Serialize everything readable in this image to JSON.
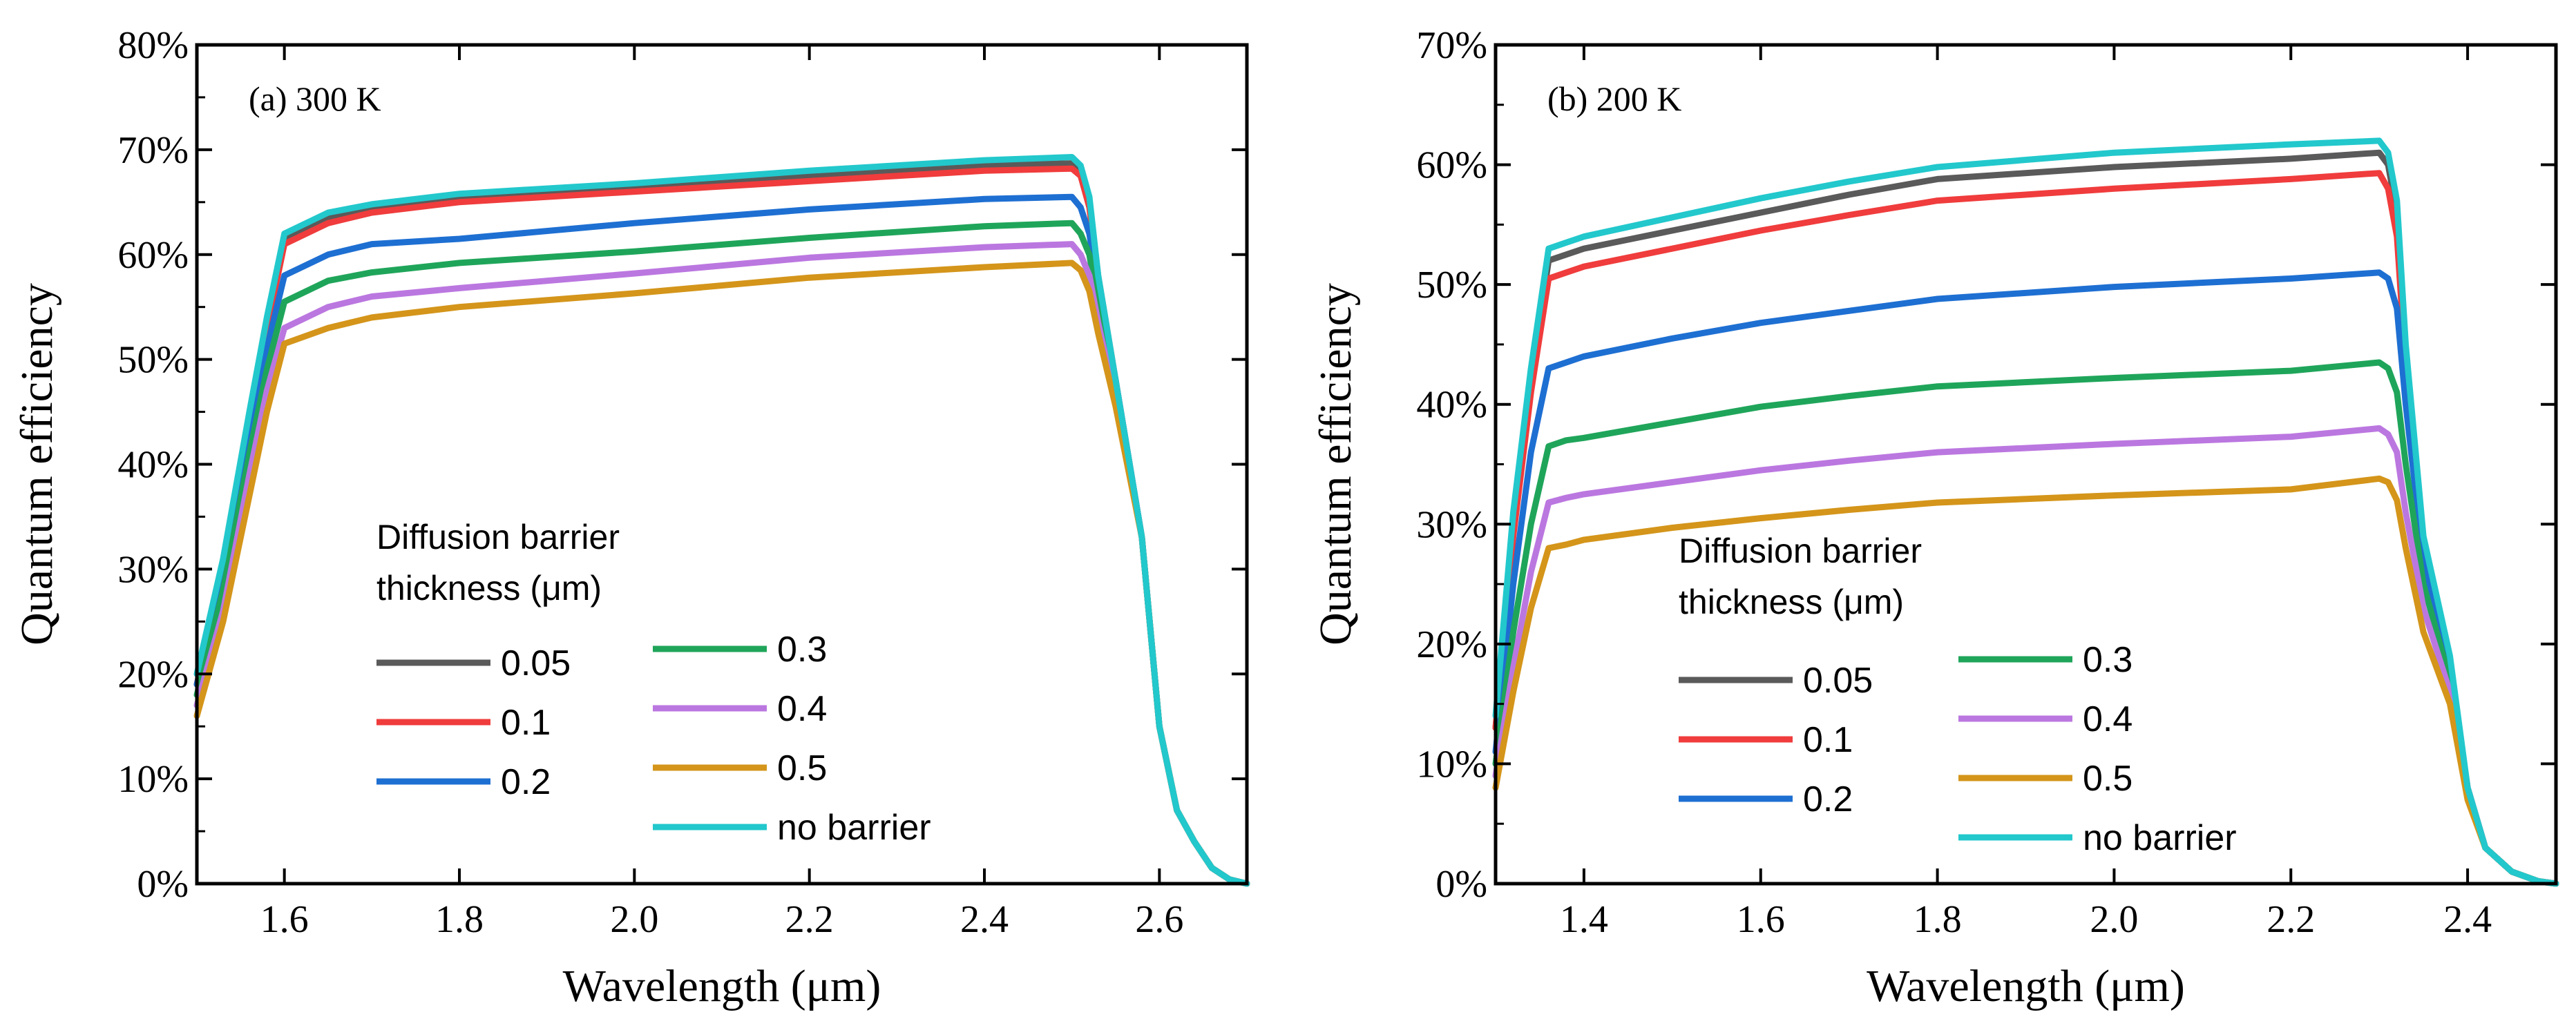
{
  "chart_data": [
    {
      "type": "line",
      "title": "(a) 300 K",
      "xlabel": "Wavelength (μm)",
      "ylabel": "Quantum efficiency",
      "xlim": [
        1.5,
        2.7
      ],
      "ylim": [
        0,
        0.8
      ],
      "xticks": [
        1.6,
        1.8,
        2.0,
        2.2,
        2.4,
        2.6
      ],
      "xtick_labels": [
        "1.6",
        "1.8",
        "2.0",
        "2.2",
        "2.4",
        "2.6"
      ],
      "yticks": [
        0,
        0.1,
        0.2,
        0.3,
        0.4,
        0.5,
        0.6,
        0.7,
        0.8
      ],
      "ytick_labels": [
        "0%",
        "10%",
        "20%",
        "30%",
        "40%",
        "50%",
        "60%",
        "70%",
        "80%"
      ],
      "legend_title": [
        "Diffusion barrier",
        "thickness (μm)"
      ],
      "grid": false,
      "series": [
        {
          "name": "0.05",
          "color": "#5a5a5a",
          "x": [
            1.5,
            1.53,
            1.56,
            1.58,
            1.6,
            1.65,
            1.7,
            1.8,
            2.0,
            2.2,
            2.4,
            2.5,
            2.51,
            2.52,
            2.53,
            2.55,
            2.58,
            2.6,
            2.62,
            2.64,
            2.66,
            2.68,
            2.7
          ],
          "y": [
            0.19,
            0.3,
            0.44,
            0.53,
            0.615,
            0.635,
            0.645,
            0.655,
            0.665,
            0.675,
            0.685,
            0.687,
            0.68,
            0.65,
            0.58,
            0.48,
            0.33,
            0.15,
            0.07,
            0.04,
            0.015,
            0.004,
            0.0
          ]
        },
        {
          "name": "0.1",
          "color": "#f03c3c",
          "x": [
            1.5,
            1.53,
            1.56,
            1.58,
            1.6,
            1.65,
            1.7,
            1.8,
            2.0,
            2.2,
            2.4,
            2.5,
            2.51,
            2.52,
            2.53,
            2.55,
            2.58,
            2.6,
            2.62,
            2.64,
            2.66,
            2.68,
            2.7
          ],
          "y": [
            0.19,
            0.3,
            0.44,
            0.53,
            0.61,
            0.63,
            0.64,
            0.65,
            0.66,
            0.67,
            0.68,
            0.682,
            0.675,
            0.645,
            0.575,
            0.48,
            0.33,
            0.15,
            0.07,
            0.04,
            0.015,
            0.004,
            0.0
          ]
        },
        {
          "name": "0.2",
          "color": "#1e6fd2",
          "x": [
            1.5,
            1.53,
            1.56,
            1.58,
            1.6,
            1.65,
            1.7,
            1.8,
            2.0,
            2.2,
            2.4,
            2.5,
            2.51,
            2.52,
            2.53,
            2.55,
            2.58,
            2.6,
            2.62,
            2.64,
            2.66,
            2.68,
            2.7
          ],
          "y": [
            0.19,
            0.29,
            0.43,
            0.51,
            0.58,
            0.6,
            0.61,
            0.615,
            0.63,
            0.643,
            0.653,
            0.655,
            0.645,
            0.62,
            0.565,
            0.48,
            0.33,
            0.15,
            0.07,
            0.04,
            0.015,
            0.004,
            0.0
          ]
        },
        {
          "name": "0.3",
          "color": "#1fa55a",
          "x": [
            1.5,
            1.53,
            1.56,
            1.58,
            1.6,
            1.65,
            1.7,
            1.8,
            2.0,
            2.2,
            2.4,
            2.5,
            2.51,
            2.52,
            2.53,
            2.55,
            2.58,
            2.6,
            2.62,
            2.64,
            2.66,
            2.68,
            2.7
          ],
          "y": [
            0.18,
            0.28,
            0.41,
            0.49,
            0.555,
            0.575,
            0.583,
            0.592,
            0.603,
            0.616,
            0.627,
            0.63,
            0.62,
            0.6,
            0.55,
            0.47,
            0.33,
            0.15,
            0.07,
            0.04,
            0.015,
            0.004,
            0.0
          ]
        },
        {
          "name": "0.4",
          "color": "#bb77e0",
          "x": [
            1.5,
            1.53,
            1.56,
            1.58,
            1.6,
            1.65,
            1.7,
            1.8,
            2.0,
            2.2,
            2.4,
            2.5,
            2.51,
            2.52,
            2.53,
            2.55,
            2.58,
            2.6,
            2.62,
            2.64,
            2.66,
            2.68,
            2.7
          ],
          "y": [
            0.17,
            0.26,
            0.39,
            0.47,
            0.53,
            0.55,
            0.56,
            0.568,
            0.582,
            0.597,
            0.607,
            0.61,
            0.6,
            0.58,
            0.535,
            0.46,
            0.33,
            0.15,
            0.07,
            0.04,
            0.015,
            0.004,
            0.0
          ]
        },
        {
          "name": "0.5",
          "color": "#d4951a",
          "x": [
            1.5,
            1.53,
            1.56,
            1.58,
            1.6,
            1.65,
            1.7,
            1.8,
            2.0,
            2.2,
            2.4,
            2.5,
            2.51,
            2.52,
            2.53,
            2.55,
            2.58,
            2.6,
            2.62,
            2.64,
            2.66,
            2.68,
            2.7
          ],
          "y": [
            0.16,
            0.25,
            0.37,
            0.45,
            0.515,
            0.53,
            0.54,
            0.55,
            0.563,
            0.578,
            0.588,
            0.592,
            0.585,
            0.565,
            0.525,
            0.455,
            0.33,
            0.15,
            0.07,
            0.04,
            0.015,
            0.004,
            0.0
          ]
        },
        {
          "name": "no barrier",
          "color": "#22c8cc",
          "x": [
            1.5,
            1.53,
            1.56,
            1.58,
            1.6,
            1.65,
            1.7,
            1.8,
            2.0,
            2.2,
            2.4,
            2.5,
            2.51,
            2.52,
            2.53,
            2.55,
            2.58,
            2.6,
            2.62,
            2.64,
            2.66,
            2.68,
            2.7
          ],
          "y": [
            0.2,
            0.31,
            0.45,
            0.54,
            0.62,
            0.64,
            0.648,
            0.658,
            0.668,
            0.68,
            0.69,
            0.693,
            0.685,
            0.655,
            0.58,
            0.48,
            0.33,
            0.15,
            0.07,
            0.04,
            0.015,
            0.004,
            0.0
          ]
        }
      ]
    },
    {
      "type": "line",
      "title": "(b) 200 K",
      "xlabel": "Wavelength (μm)",
      "ylabel": "Quantum efficiency",
      "xlim": [
        1.3,
        2.5
      ],
      "ylim": [
        0,
        0.7
      ],
      "xticks": [
        1.4,
        1.6,
        1.8,
        2.0,
        2.2,
        2.4
      ],
      "xtick_labels": [
        "1.4",
        "1.6",
        "1.8",
        "2.0",
        "2.2",
        "2.4"
      ],
      "yticks": [
        0,
        0.1,
        0.2,
        0.3,
        0.4,
        0.5,
        0.6,
        0.7
      ],
      "ytick_labels": [
        "0%",
        "10%",
        "20%",
        "30%",
        "40%",
        "50%",
        "60%",
        "70%"
      ],
      "legend_title": [
        "Diffusion barrier",
        "thickness (μm)"
      ],
      "grid": false,
      "series": [
        {
          "name": "0.05",
          "color": "#5a5a5a",
          "x": [
            1.3,
            1.32,
            1.34,
            1.36,
            1.38,
            1.4,
            1.5,
            1.6,
            1.7,
            1.8,
            2.0,
            2.2,
            2.3,
            2.31,
            2.32,
            2.33,
            2.35,
            2.38,
            2.4,
            2.42,
            2.45,
            2.48,
            2.5
          ],
          "y": [
            0.13,
            0.3,
            0.42,
            0.52,
            0.525,
            0.53,
            0.545,
            0.56,
            0.575,
            0.588,
            0.598,
            0.605,
            0.61,
            0.6,
            0.56,
            0.44,
            0.28,
            0.18,
            0.08,
            0.03,
            0.01,
            0.002,
            0.0
          ]
        },
        {
          "name": "0.1",
          "color": "#f03c3c",
          "x": [
            1.3,
            1.32,
            1.34,
            1.36,
            1.38,
            1.4,
            1.5,
            1.6,
            1.7,
            1.8,
            2.0,
            2.2,
            2.3,
            2.31,
            2.32,
            2.33,
            2.35,
            2.38,
            2.4,
            2.42,
            2.45,
            2.48,
            2.5
          ],
          "y": [
            0.13,
            0.29,
            0.41,
            0.505,
            0.51,
            0.515,
            0.53,
            0.545,
            0.558,
            0.57,
            0.58,
            0.588,
            0.593,
            0.58,
            0.54,
            0.43,
            0.28,
            0.18,
            0.08,
            0.03,
            0.01,
            0.002,
            0.0
          ]
        },
        {
          "name": "0.2",
          "color": "#1e6fd2",
          "x": [
            1.3,
            1.32,
            1.34,
            1.36,
            1.38,
            1.4,
            1.5,
            1.6,
            1.7,
            1.8,
            2.0,
            2.2,
            2.3,
            2.31,
            2.32,
            2.33,
            2.35,
            2.38,
            2.4,
            2.42,
            2.45,
            2.48,
            2.5
          ],
          "y": [
            0.11,
            0.25,
            0.36,
            0.43,
            0.435,
            0.44,
            0.455,
            0.468,
            0.478,
            0.488,
            0.498,
            0.505,
            0.51,
            0.505,
            0.48,
            0.4,
            0.27,
            0.18,
            0.08,
            0.03,
            0.01,
            0.002,
            0.0
          ]
        },
        {
          "name": "0.3",
          "color": "#1fa55a",
          "x": [
            1.3,
            1.32,
            1.34,
            1.36,
            1.38,
            1.4,
            1.5,
            1.6,
            1.7,
            1.8,
            2.0,
            2.2,
            2.3,
            2.31,
            2.32,
            2.33,
            2.35,
            2.38,
            2.4,
            2.42,
            2.45,
            2.48,
            2.5
          ],
          "y": [
            0.1,
            0.21,
            0.3,
            0.365,
            0.37,
            0.372,
            0.385,
            0.398,
            0.407,
            0.415,
            0.422,
            0.428,
            0.435,
            0.43,
            0.41,
            0.35,
            0.25,
            0.17,
            0.08,
            0.03,
            0.01,
            0.002,
            0.0
          ]
        },
        {
          "name": "0.4",
          "color": "#bb77e0",
          "x": [
            1.3,
            1.32,
            1.34,
            1.36,
            1.38,
            1.4,
            1.5,
            1.6,
            1.7,
            1.8,
            2.0,
            2.2,
            2.3,
            2.31,
            2.32,
            2.33,
            2.35,
            2.38,
            2.4,
            2.42,
            2.45,
            2.48,
            2.5
          ],
          "y": [
            0.09,
            0.18,
            0.26,
            0.318,
            0.322,
            0.325,
            0.335,
            0.345,
            0.353,
            0.36,
            0.367,
            0.373,
            0.38,
            0.375,
            0.36,
            0.31,
            0.23,
            0.16,
            0.08,
            0.03,
            0.01,
            0.002,
            0.0
          ]
        },
        {
          "name": "0.5",
          "color": "#d4951a",
          "x": [
            1.3,
            1.32,
            1.34,
            1.36,
            1.38,
            1.4,
            1.5,
            1.6,
            1.7,
            1.8,
            2.0,
            2.2,
            2.3,
            2.31,
            2.32,
            2.33,
            2.35,
            2.38,
            2.4,
            2.42,
            2.45,
            2.48,
            2.5
          ],
          "y": [
            0.08,
            0.16,
            0.23,
            0.28,
            0.283,
            0.287,
            0.297,
            0.305,
            0.312,
            0.318,
            0.324,
            0.329,
            0.338,
            0.335,
            0.32,
            0.28,
            0.21,
            0.15,
            0.07,
            0.03,
            0.01,
            0.002,
            0.0
          ]
        },
        {
          "name": "no barrier",
          "color": "#22c8cc",
          "x": [
            1.3,
            1.32,
            1.34,
            1.36,
            1.38,
            1.4,
            1.5,
            1.6,
            1.7,
            1.8,
            2.0,
            2.2,
            2.3,
            2.31,
            2.32,
            2.33,
            2.35,
            2.38,
            2.4,
            2.42,
            2.45,
            2.48,
            2.5
          ],
          "y": [
            0.14,
            0.31,
            0.43,
            0.53,
            0.535,
            0.54,
            0.556,
            0.572,
            0.586,
            0.598,
            0.61,
            0.617,
            0.62,
            0.61,
            0.57,
            0.45,
            0.29,
            0.19,
            0.08,
            0.03,
            0.01,
            0.002,
            0.0
          ]
        }
      ]
    }
  ]
}
